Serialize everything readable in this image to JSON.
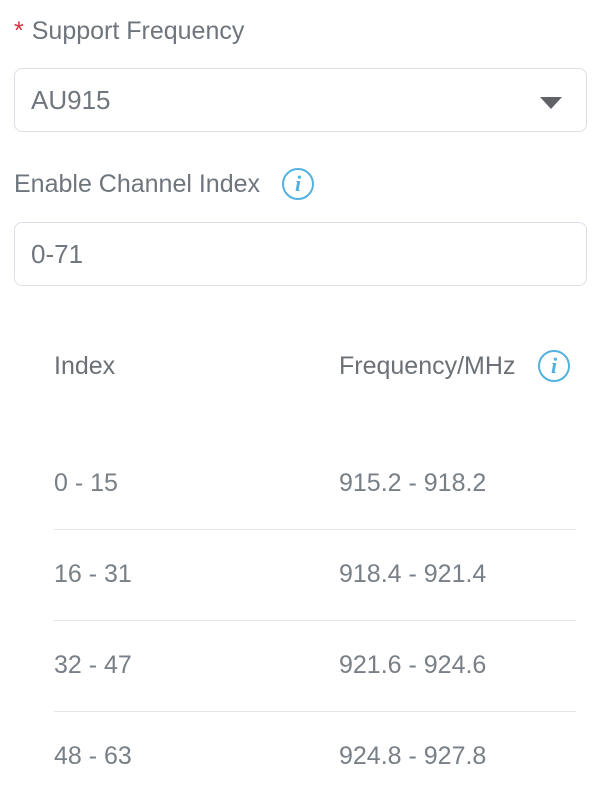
{
  "colors": {
    "required_red": "#d2303c",
    "info_blue": "#51b2e0",
    "label_gray": "#6e757c",
    "value_gray": "#70777e",
    "border_gray": "#dcdfe6",
    "divider_gray": "#e4e7ea",
    "caret_gray": "#5f6368"
  },
  "icons": {
    "info": "i",
    "dropdown_caret": "chevron-down"
  },
  "form": {
    "support_frequency": {
      "required_marker": "*",
      "label": "Support Frequency",
      "selected_value": "AU915"
    },
    "enable_channel_index": {
      "label": "Enable Channel Index",
      "value": "0-71"
    }
  },
  "channel_table": {
    "header": {
      "index": "Index",
      "frequency": "Frequency/MHz"
    },
    "rows": [
      {
        "index": "0 - 15",
        "frequency": "915.2 - 918.2"
      },
      {
        "index": "16 - 31",
        "frequency": "918.4 - 921.4"
      },
      {
        "index": "32 - 47",
        "frequency": "921.6 - 924.6"
      },
      {
        "index": "48 - 63",
        "frequency": "924.8 - 927.8"
      }
    ]
  }
}
